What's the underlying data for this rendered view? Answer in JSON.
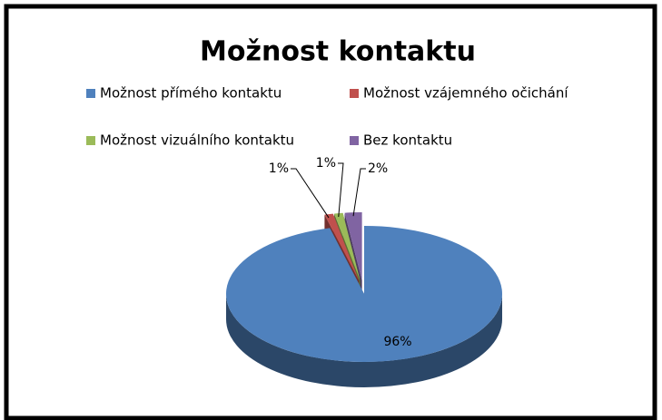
{
  "chart_data": {
    "type": "pie",
    "title": "Možnost kontaktu",
    "categories": [
      "Možnost přímého kontaktu",
      "Možnost vzájemného očichání",
      "Možnost vizuálního kontaktu",
      "Bez kontaktu"
    ],
    "values": [
      96,
      1,
      1,
      2
    ],
    "value_labels": [
      "96%",
      "1%",
      "1%",
      "2%"
    ],
    "colors": [
      "#4f81bd",
      "#c0504d",
      "#9bbb59",
      "#8064a2"
    ],
    "legend": "top"
  }
}
